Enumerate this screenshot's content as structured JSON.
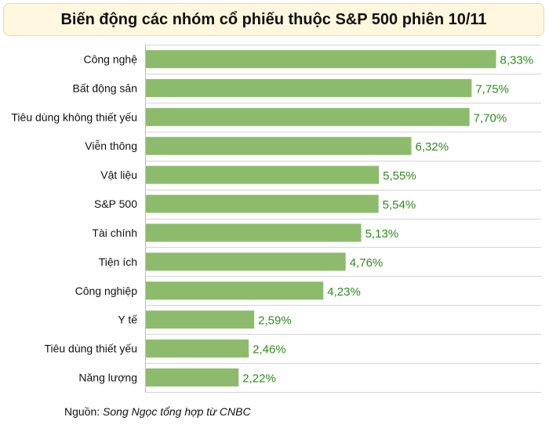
{
  "chart_data": {
    "type": "bar",
    "orientation": "horizontal",
    "title": "Biến động các nhóm cổ phiếu thuộc S&P 500 phiên 10/11",
    "categories": [
      "Công nghệ",
      "Bất động sản",
      "Tiêu dùng không thiết yếu",
      "Viễn thông",
      "Vật liệu",
      "S&P 500",
      "Tài chính",
      "Tiện ích",
      "Công nghiệp",
      "Y tế",
      "Tiêu dùng thiết yếu",
      "Năng lượng"
    ],
    "values": [
      8.33,
      7.75,
      7.7,
      6.32,
      5.55,
      5.54,
      5.13,
      4.76,
      4.23,
      2.59,
      2.46,
      2.22
    ],
    "value_labels": [
      "8,33%",
      "7,75%",
      "7,70%",
      "6,32%",
      "5,55%",
      "5,54%",
      "5,13%",
      "4,76%",
      "4,23%",
      "2,59%",
      "2,46%",
      "2,22%"
    ],
    "xlim": [
      0,
      9.4
    ],
    "grid": true,
    "colors": {
      "bar": "#8cbc6b",
      "label": "#2e8b1e",
      "grid": "#d4d4d4"
    }
  },
  "source": {
    "prefix": "Nguồn: ",
    "author": "Song Ngọc tổng hợp từ CNBC"
  }
}
